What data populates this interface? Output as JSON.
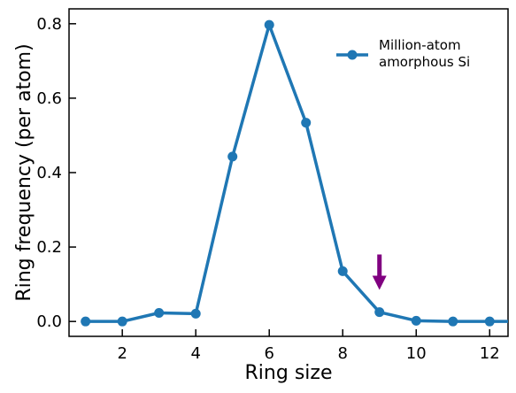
{
  "chart_data": {
    "type": "line",
    "xlabel": "Ring size",
    "ylabel": "Ring frequency (per atom)",
    "xlim": [
      0.55,
      12.5
    ],
    "ylim": [
      -0.04,
      0.84
    ],
    "xticks": [
      2,
      4,
      6,
      8,
      10,
      12
    ],
    "yticks": [
      0.0,
      0.2,
      0.4,
      0.6,
      0.8
    ],
    "xtick_labels": [
      "2",
      "4",
      "6",
      "8",
      "10",
      "12"
    ],
    "ytick_labels": [
      "0.0",
      "0.2",
      "0.4",
      "0.6",
      "0.8"
    ],
    "grid": false,
    "legend_position": "top-right",
    "series": [
      {
        "name": "Million-atom amorphous Si",
        "legend_lines": [
          "Million-atom",
          "amorphous Si"
        ],
        "color": "#1f77b4",
        "x": [
          1,
          2,
          3,
          4,
          5,
          6,
          7,
          8,
          9,
          10,
          11,
          12,
          13
        ],
        "y": [
          0.0,
          0.0,
          0.023,
          0.021,
          0.443,
          0.797,
          0.534,
          0.135,
          0.025,
          0.002,
          0.0,
          0.0,
          0.0
        ]
      }
    ],
    "annotation": {
      "type": "arrow",
      "direction": "down",
      "color": "#800080",
      "x": 9,
      "y_from": 0.18,
      "y_to": 0.085
    }
  }
}
